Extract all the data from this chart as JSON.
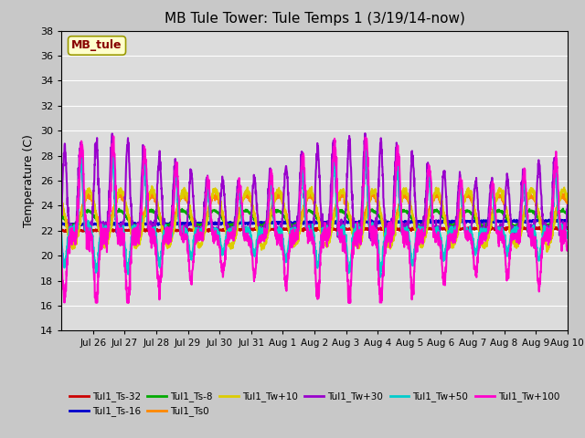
{
  "title": "MB Tule Tower: Tule Temps 1 (3/19/14-now)",
  "ylabel": "Temperature (C)",
  "ylim": [
    14,
    38
  ],
  "yticks": [
    14,
    16,
    18,
    20,
    22,
    24,
    26,
    28,
    30,
    32,
    34,
    36,
    38
  ],
  "plot_bg": "#dcdcdc",
  "fig_bg": "#c8c8c8",
  "series": [
    {
      "label": "Tul1_Ts-32",
      "color": "#cc0000",
      "lw": 1.5
    },
    {
      "label": "Tul1_Ts-16",
      "color": "#0000cc",
      "lw": 1.5
    },
    {
      "label": "Tul1_Ts-8",
      "color": "#00aa00",
      "lw": 1.5
    },
    {
      "label": "Tul1_Ts0",
      "color": "#ff8800",
      "lw": 1.5
    },
    {
      "label": "Tul1_Tw+10",
      "color": "#ddcc00",
      "lw": 1.5
    },
    {
      "label": "Tul1_Tw+30",
      "color": "#9900cc",
      "lw": 1.5
    },
    {
      "label": "Tul1_Tw+50",
      "color": "#00cccc",
      "lw": 1.5
    },
    {
      "label": "Tul1_Tw+100",
      "color": "#ff00cc",
      "lw": 1.5
    }
  ],
  "xtick_positions": [
    1,
    2,
    3,
    4,
    5,
    6,
    7,
    8,
    9,
    10,
    11,
    12,
    13,
    14,
    15,
    16
  ],
  "xtick_labels": [
    "Jul 26",
    "Jul 27",
    "Jul 28",
    "Jul 29",
    "Jul 30",
    "Jul 31",
    "Aug 1",
    "Aug 2",
    "Aug 3",
    "Aug 4",
    "Aug 5",
    "Aug 6",
    "Aug 7",
    "Aug 8",
    "Aug 9",
    "Aug 10"
  ],
  "tag_label": "MB_tule",
  "tag_bg": "#ffffcc",
  "tag_fg": "#880000",
  "tag_border": "#999900",
  "legend_ncol": 6,
  "xlim": [
    0,
    16
  ]
}
